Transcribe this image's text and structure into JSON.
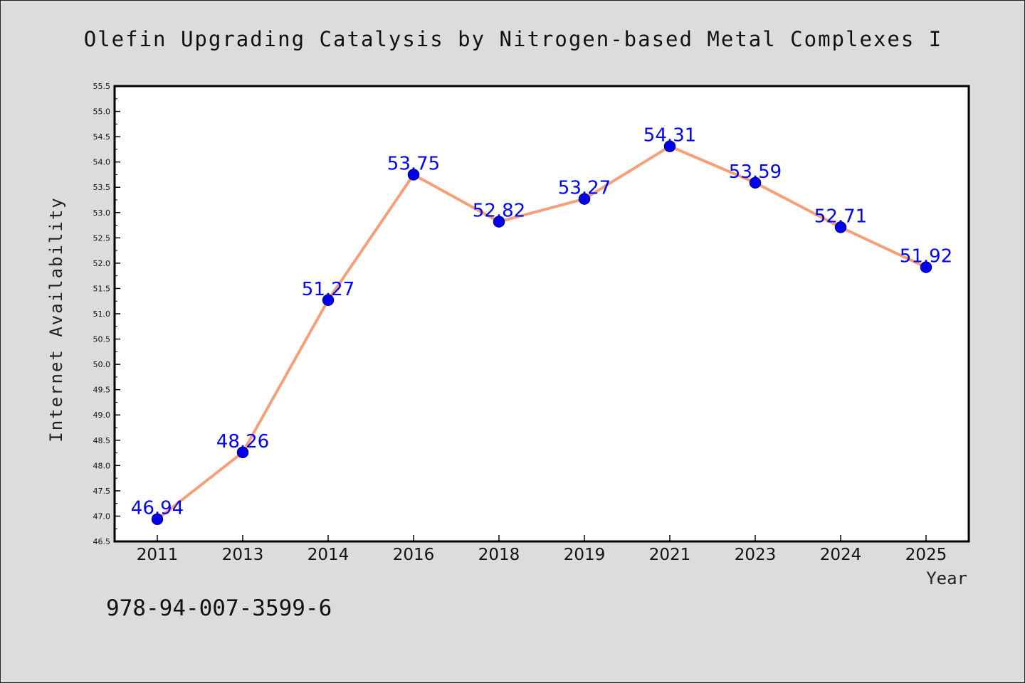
{
  "page": {
    "background": "#dcdcdc",
    "footer_code": "978-94-007-3599-6"
  },
  "chart_data": {
    "type": "line",
    "title": "Olefin Upgrading Catalysis by Nitrogen-based Metal Complexes I",
    "xlabel": "Year",
    "ylabel": "Internet Availability",
    "categories": [
      "2011",
      "2013",
      "2014",
      "2016",
      "2018",
      "2019",
      "2021",
      "2023",
      "2024",
      "2025"
    ],
    "values": [
      46.94,
      48.26,
      51.27,
      53.75,
      52.82,
      53.27,
      54.31,
      53.59,
      52.71,
      51.92
    ],
    "data_labels": [
      "46.94",
      "48.26",
      "51.27",
      "53.75",
      "52.82",
      "53.27",
      "54.31",
      "53.59",
      "52.71",
      "51.92"
    ],
    "ylim": [
      46.5,
      55.5
    ],
    "yticks": [
      "46.5",
      "47.0",
      "47.5",
      "48.0",
      "48.5",
      "49.0",
      "49.5",
      "50.0",
      "50.5",
      "51.0",
      "51.5",
      "52.0",
      "52.5",
      "53.0",
      "53.5",
      "54.0",
      "54.5",
      "55.0",
      "55.5"
    ],
    "grid": false,
    "legend": "none",
    "colors": {
      "line": "#f4a07a",
      "marker": "#0000ee",
      "marker_edge": "#00008b",
      "data_label": "#0000ff",
      "plot_background": "#ffffff",
      "axis": "#000000"
    }
  }
}
